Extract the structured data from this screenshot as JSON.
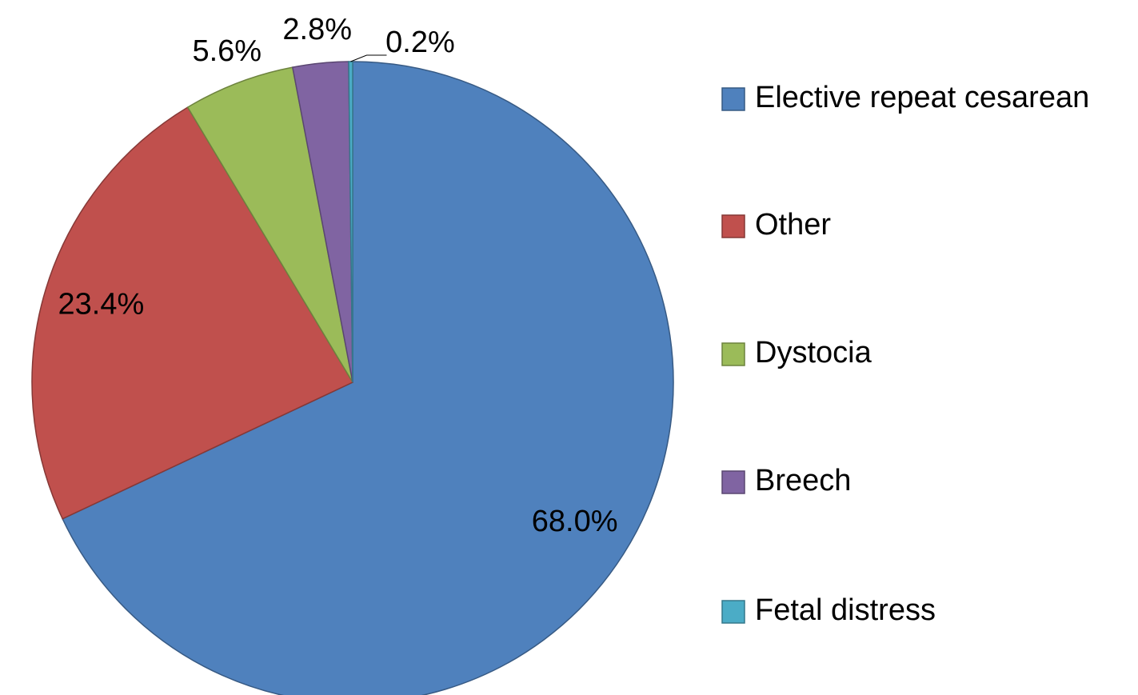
{
  "chart_data": {
    "type": "pie",
    "categories": [
      "Elective repeat cesarean",
      "Other",
      "Dystocia",
      "Breech",
      "Fetal distress"
    ],
    "values": [
      68.0,
      23.4,
      5.6,
      2.8,
      0.2
    ],
    "value_labels": [
      "68.0%",
      "23.4%",
      "5.6%",
      "2.8%",
      "0.2%"
    ],
    "colors": [
      "#4f81bd",
      "#c0504d",
      "#9bbb59",
      "#8064a2",
      "#4bacc6"
    ],
    "legend": "right"
  }
}
